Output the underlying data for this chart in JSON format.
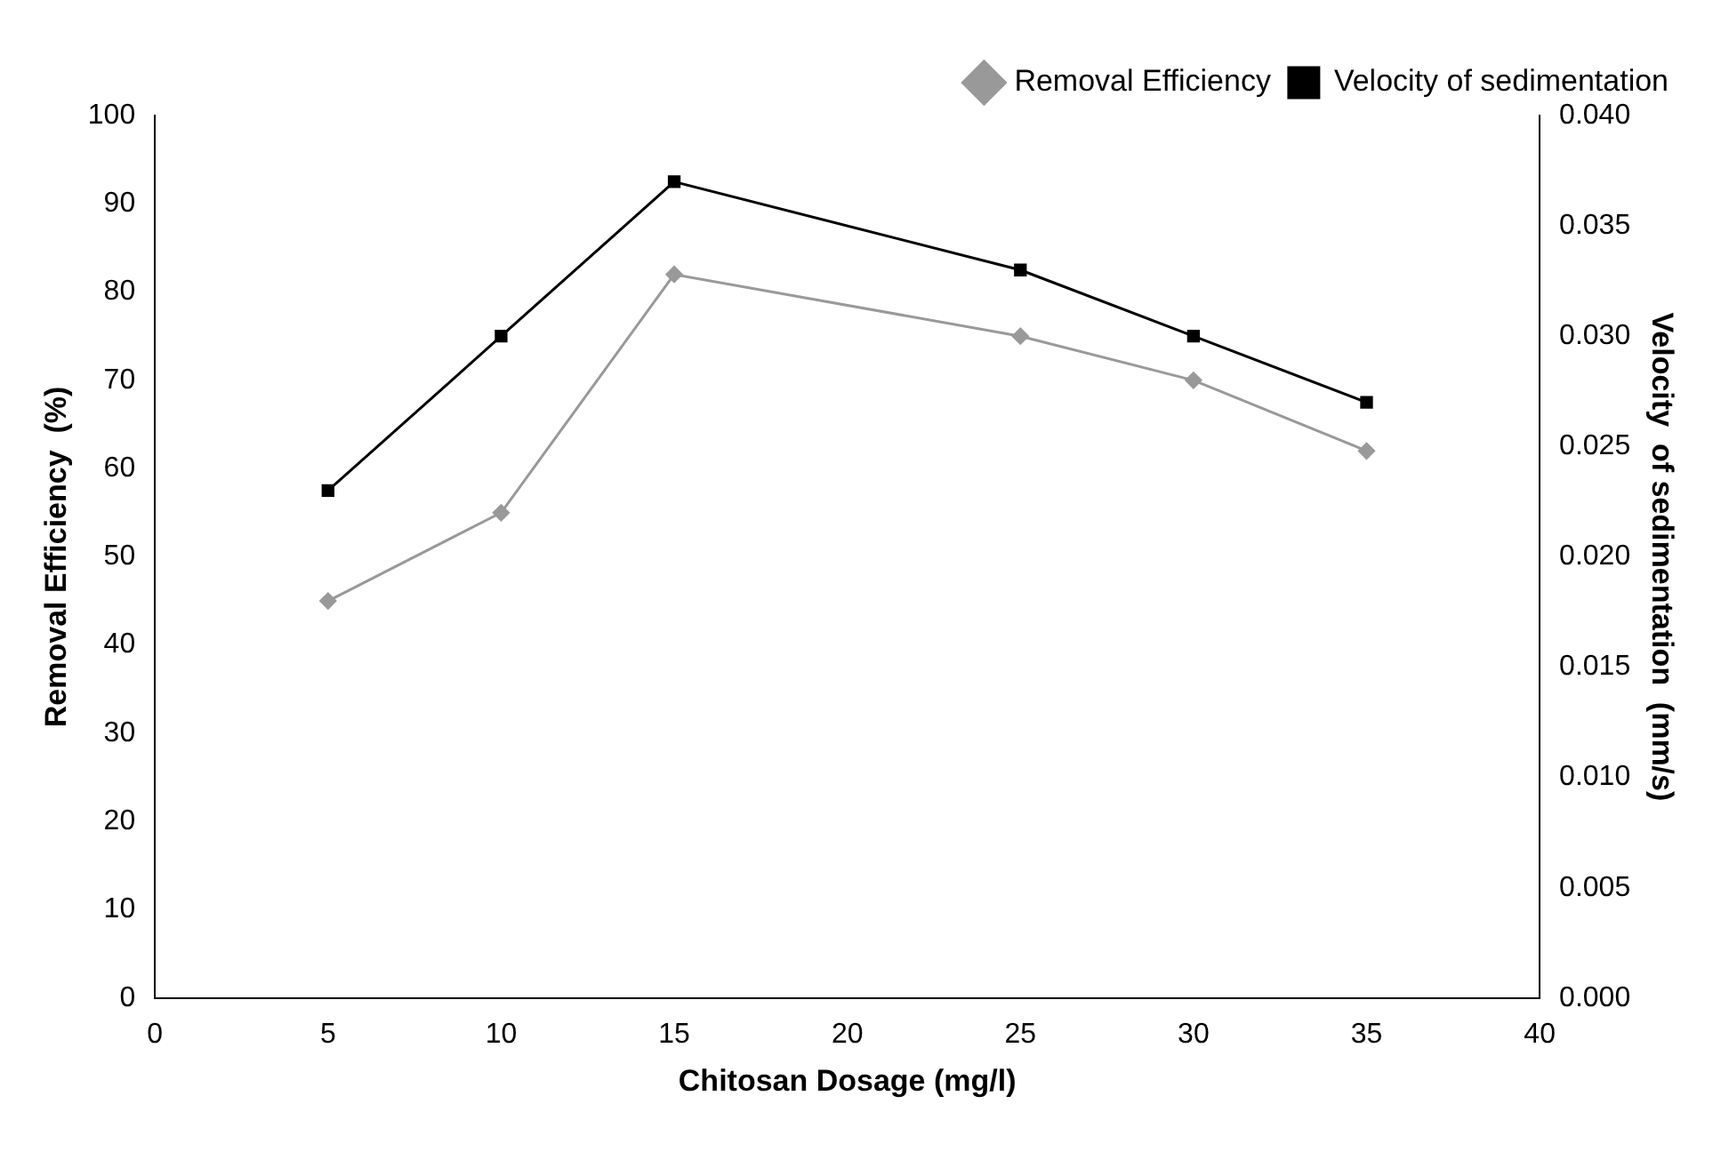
{
  "chart_data": {
    "type": "line",
    "xlabel": "Chitosan Dosage (mg/l)",
    "ylabel": "Removal Efficiency  (%)",
    "y2label": "Velocity  of sedimentation  (mm/s)",
    "x": [
      5,
      10,
      15,
      25,
      30,
      35
    ],
    "series": [
      {
        "name": "Removal Efficiency",
        "color": "#999999",
        "marker": "diamond",
        "values": [
          45,
          55,
          82,
          75,
          70,
          62
        ]
      },
      {
        "name": "Velocity of sedimentation",
        "color": "#000000",
        "marker": "square",
        "axis": "y2",
        "values": [
          0.023,
          0.03,
          0.037,
          0.033,
          0.03,
          0.027
        ]
      }
    ],
    "xlim": [
      0,
      40
    ],
    "xticks": [
      0,
      5,
      10,
      15,
      20,
      25,
      30,
      35,
      40
    ],
    "ylim": [
      0,
      100
    ],
    "yticks": [
      0,
      10,
      20,
      30,
      40,
      50,
      60,
      70,
      80,
      90,
      100
    ],
    "y2lim": [
      0,
      0.04
    ],
    "y2ticks": [
      {
        "value": 0,
        "label": "0.000"
      },
      {
        "value": 0.005,
        "label": "0.005"
      },
      {
        "value": 0.01,
        "label": "0.010"
      },
      {
        "value": 0.015,
        "label": "0.015"
      },
      {
        "value": 0.02,
        "label": "0.020"
      },
      {
        "value": 0.025,
        "label": "0.025"
      },
      {
        "value": 0.03,
        "label": "0.030"
      },
      {
        "value": 0.035,
        "label": "0.035"
      },
      {
        "value": 0.04,
        "label": "0.040"
      }
    ],
    "grid": false,
    "legend": "top right"
  }
}
